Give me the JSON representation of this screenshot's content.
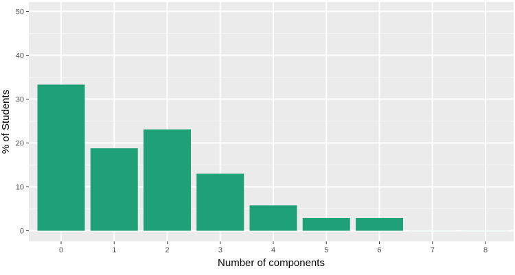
{
  "chart_data": {
    "type": "bar",
    "title": "",
    "xlabel": "Number of components",
    "ylabel": "% of Students",
    "categories": [
      "0",
      "1",
      "2",
      "3",
      "4",
      "5",
      "6",
      "7",
      "8"
    ],
    "values": [
      33.3,
      18.8,
      23.1,
      13.0,
      5.8,
      2.9,
      2.9,
      0,
      0
    ],
    "ylim": [
      0,
      50
    ],
    "yticks": [
      "0",
      "10",
      "20",
      "30",
      "40",
      "50"
    ],
    "ytick_values": [
      0,
      10,
      20,
      30,
      40,
      50
    ],
    "grid": true,
    "legend": "none",
    "colors": {
      "bar": "#1fa177",
      "panel": "#ebebeb",
      "grid_major": "#ffffff",
      "grid_minor": "#f5f5f5",
      "tick": "#333333"
    }
  }
}
